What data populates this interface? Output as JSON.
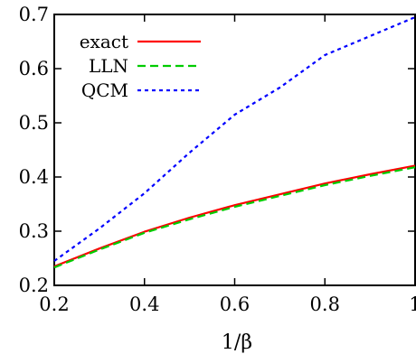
{
  "chart_data": {
    "type": "line",
    "xlabel": "1/β",
    "ylabel": "",
    "xlim": [
      0.2,
      1.0
    ],
    "ylim": [
      0.2,
      0.7
    ],
    "xticks": [
      0.2,
      0.4,
      0.6,
      0.8,
      1.0
    ],
    "xtick_labels": [
      "0.2",
      "0.4",
      "0.6",
      "0.8",
      "1"
    ],
    "yticks": [
      0.2,
      0.3,
      0.4,
      0.5,
      0.6,
      0.7
    ],
    "ytick_labels": [
      "0.2",
      "0.3",
      "0.4",
      "0.5",
      "0.6",
      "0.7"
    ],
    "grid": false,
    "legend_position": "top-left",
    "series": [
      {
        "name": "exact",
        "color": "#ff0000",
        "style": "solid",
        "x": [
          0.2,
          0.3,
          0.4,
          0.5,
          0.6,
          0.7,
          0.8,
          0.9,
          1.0
        ],
        "y": [
          0.235,
          0.268,
          0.299,
          0.325,
          0.348,
          0.368,
          0.388,
          0.405,
          0.421
        ]
      },
      {
        "name": "LLN",
        "color": "#00cc00",
        "style": "dashed",
        "x": [
          0.2,
          0.3,
          0.4,
          0.5,
          0.6,
          0.7,
          0.8,
          0.9,
          1.0
        ],
        "y": [
          0.233,
          0.266,
          0.297,
          0.322,
          0.345,
          0.365,
          0.385,
          0.402,
          0.418
        ]
      },
      {
        "name": "QCM",
        "color": "#0000ff",
        "style": "dotted",
        "x": [
          0.2,
          0.3,
          0.4,
          0.5,
          0.6,
          0.7,
          0.8,
          0.9,
          1.0
        ],
        "y": [
          0.245,
          0.305,
          0.37,
          0.445,
          0.515,
          0.565,
          0.625,
          0.66,
          0.695
        ]
      }
    ]
  }
}
